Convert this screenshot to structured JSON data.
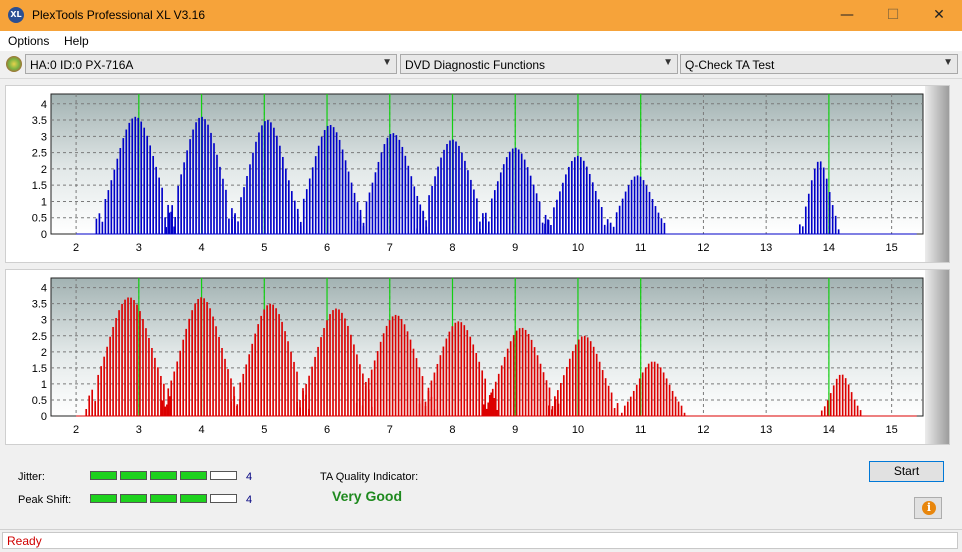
{
  "window": {
    "title": "PlexTools Professional XL V3.16",
    "icon_label": "XL",
    "minimize": "—",
    "maximize": "☐",
    "close": "✕"
  },
  "menu": {
    "items": [
      "Options",
      "Help"
    ]
  },
  "toolbar": {
    "drive": "HA:0 ID:0  PX-716A",
    "function": "DVD Diagnostic Functions",
    "test": "Q-Check TA Test"
  },
  "charts": {
    "y_ticks": [
      "0",
      "0.5",
      "1",
      "1.5",
      "2",
      "2.5",
      "3",
      "3.5",
      "4"
    ],
    "x_ticks": [
      "2",
      "3",
      "4",
      "5",
      "6",
      "7",
      "8",
      "9",
      "10",
      "11",
      "12",
      "13",
      "14",
      "15"
    ]
  },
  "chart_data": [
    {
      "type": "bar",
      "series": [
        {
          "name": "",
          "color": "#0000c8"
        }
      ],
      "green_markers": [
        3,
        4,
        5,
        6,
        7,
        8,
        9,
        10,
        11,
        14
      ],
      "xlim": [
        1.6,
        15.5
      ],
      "ylim": [
        0,
        4.3
      ],
      "x_ticks": [
        2,
        3,
        4,
        5,
        6,
        7,
        8,
        9,
        10,
        11,
        12,
        13,
        14,
        15
      ],
      "y_ticks": [
        0,
        0.5,
        1,
        1.5,
        2,
        2.5,
        3,
        3.5,
        4
      ],
      "peaks": [
        {
          "center": 2.95,
          "height": 3.6,
          "width": 0.5
        },
        {
          "center": 4.0,
          "height": 3.6,
          "width": 0.45
        },
        {
          "center": 5.05,
          "height": 3.5,
          "width": 0.45
        },
        {
          "center": 6.05,
          "height": 3.35,
          "width": 0.45
        },
        {
          "center": 7.05,
          "height": 3.1,
          "width": 0.45
        },
        {
          "center": 8.0,
          "height": 2.9,
          "width": 0.45
        },
        {
          "center": 9.0,
          "height": 2.65,
          "width": 0.45
        },
        {
          "center": 10.0,
          "height": 2.4,
          "width": 0.42
        },
        {
          "center": 10.95,
          "height": 1.8,
          "width": 0.38
        },
        {
          "center": 13.85,
          "height": 2.25,
          "width": 0.25
        }
      ]
    },
    {
      "type": "bar",
      "series": [
        {
          "name": "",
          "color": "#dc0000"
        }
      ],
      "green_markers": [
        3,
        4,
        5,
        6,
        7,
        8,
        9,
        10,
        11,
        14
      ],
      "xlim": [
        1.6,
        15.5
      ],
      "ylim": [
        0,
        4.3
      ],
      "x_ticks": [
        2,
        3,
        4,
        5,
        6,
        7,
        8,
        9,
        10,
        11,
        12,
        13,
        14,
        15
      ],
      "y_ticks": [
        0,
        0.5,
        1,
        1.5,
        2,
        2.5,
        3,
        3.5,
        4
      ],
      "peaks": [
        {
          "center": 2.85,
          "height": 3.7,
          "width": 0.55
        },
        {
          "center": 4.0,
          "height": 3.7,
          "width": 0.5
        },
        {
          "center": 5.1,
          "height": 3.5,
          "width": 0.5
        },
        {
          "center": 6.15,
          "height": 3.35,
          "width": 0.5
        },
        {
          "center": 7.1,
          "height": 3.15,
          "width": 0.5
        },
        {
          "center": 8.1,
          "height": 2.95,
          "width": 0.5
        },
        {
          "center": 9.1,
          "height": 2.75,
          "width": 0.48
        },
        {
          "center": 10.1,
          "height": 2.5,
          "width": 0.45
        },
        {
          "center": 11.2,
          "height": 1.7,
          "width": 0.4
        },
        {
          "center": 14.2,
          "height": 1.3,
          "width": 0.25
        }
      ]
    }
  ],
  "results": {
    "jitter_label": "Jitter:",
    "jitter_value": "4",
    "jitter_level": 4,
    "peak_label": "Peak Shift:",
    "peak_value": "4",
    "peak_level": 4,
    "meter_segments": 5,
    "ta_label": "TA Quality Indicator:",
    "ta_value": "Very Good"
  },
  "buttons": {
    "start": "Start",
    "info": "i"
  },
  "status": {
    "text": "Ready"
  }
}
